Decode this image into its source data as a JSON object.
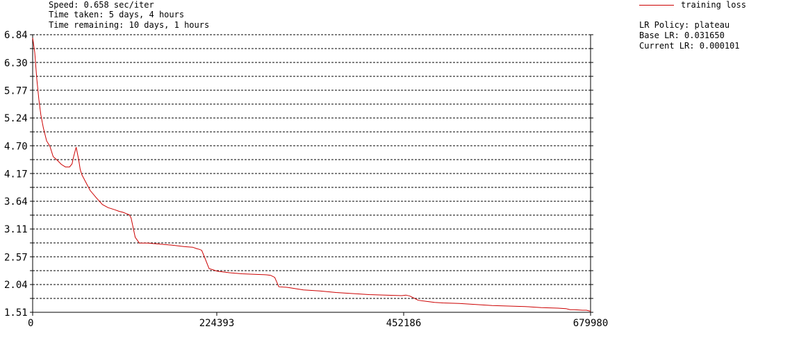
{
  "info": {
    "speed": "Speed: 0.658 sec/iter",
    "time_taken": "Time taken: 5 days, 4 hours",
    "time_remaining": "Time remaining: 10 days, 1 hours"
  },
  "legend": {
    "series_label": "training loss",
    "lr_policy": "LR Policy: plateau",
    "base_lr": "Base LR: 0.031650",
    "current_lr": "Current LR: 0.000101"
  },
  "colors": {
    "series": "#cc0000",
    "grid": "#000000",
    "background": "#ffffff"
  },
  "chart_data": {
    "type": "line",
    "title": "",
    "xlabel": "",
    "ylabel": "",
    "xlim": [
      0,
      679980
    ],
    "ylim": [
      1.51,
      6.84
    ],
    "x_ticks": [
      "0",
      "224393",
      "452186",
      "679980"
    ],
    "x_tick_values": [
      0,
      224393,
      452186,
      679980
    ],
    "y_ticks": [
      "1.51",
      "2.04",
      "2.57",
      "3.11",
      "3.64",
      "4.17",
      "4.70",
      "5.24",
      "5.77",
      "6.30",
      "6.84"
    ],
    "y_tick_values": [
      1.51,
      2.04,
      2.57,
      3.11,
      3.64,
      4.17,
      4.7,
      5.24,
      5.77,
      6.3,
      6.84
    ],
    "grid": "horizontal dashed",
    "legend_position": "top-right outside",
    "series": [
      {
        "name": "training loss",
        "x": [
          0,
          2500,
          5000,
          7500,
          10000,
          13000,
          17000,
          21000,
          25000,
          30000,
          35000,
          40000,
          45000,
          48000,
          50000,
          53000,
          56000,
          58000,
          60000,
          65000,
          70000,
          78000,
          85000,
          92000,
          100000,
          105000,
          110000,
          115000,
          118000,
          120000,
          125000,
          130000,
          140000,
          155000,
          170000,
          185000,
          195000,
          200000,
          203000,
          206000,
          210000,
          215000,
          225000,
          240000,
          255000,
          270000,
          285000,
          290000,
          295000,
          300000,
          310000,
          330000,
          350000,
          370000,
          390000,
          410000,
          430000,
          450000,
          455000,
          460000,
          465000,
          470000,
          480000,
          490000,
          500000,
          520000,
          540000,
          560000,
          580000,
          600000,
          620000,
          640000,
          650000,
          655000,
          660000,
          670000,
          675000,
          679980
        ],
        "y": [
          6.78,
          6.5,
          6.0,
          5.6,
          5.3,
          5.05,
          4.8,
          4.7,
          4.5,
          4.43,
          4.35,
          4.3,
          4.3,
          4.36,
          4.5,
          4.68,
          4.45,
          4.25,
          4.15,
          4.0,
          3.85,
          3.7,
          3.58,
          3.52,
          3.48,
          3.45,
          3.43,
          3.4,
          3.38,
          3.32,
          2.95,
          2.84,
          2.84,
          2.82,
          2.8,
          2.77,
          2.76,
          2.73,
          2.72,
          2.7,
          2.55,
          2.35,
          2.3,
          2.27,
          2.25,
          2.24,
          2.23,
          2.22,
          2.18,
          2.0,
          1.99,
          1.94,
          1.92,
          1.89,
          1.87,
          1.85,
          1.84,
          1.83,
          1.84,
          1.82,
          1.78,
          1.74,
          1.72,
          1.7,
          1.69,
          1.68,
          1.66,
          1.64,
          1.63,
          1.62,
          1.6,
          1.59,
          1.58,
          1.56,
          1.56,
          1.55,
          1.55,
          1.53
        ]
      }
    ]
  }
}
